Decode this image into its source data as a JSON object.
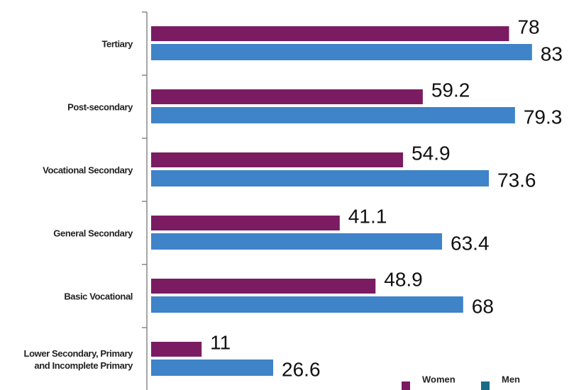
{
  "chart_data": {
    "type": "hbar",
    "categories": [
      "Tertiary",
      "Post-secondary",
      "Vocational Secondary",
      "General Secondary",
      "Basic Vocational",
      "Lower Secondary, Primary and Incomplete Primary"
    ],
    "series": [
      {
        "name": "Women",
        "color": "#7b1c62",
        "legend_color": "#7b1c62",
        "values": [
          78,
          59.2,
          54.9,
          41.1,
          48.9,
          11
        ]
      },
      {
        "name": "Men",
        "color": "#3f83c8",
        "legend_color": "#1b6b89",
        "values": [
          83,
          79.3,
          73.6,
          63.4,
          68,
          26.6
        ]
      }
    ],
    "xlim": [
      0,
      92
    ],
    "legend": "bottom-right"
  }
}
